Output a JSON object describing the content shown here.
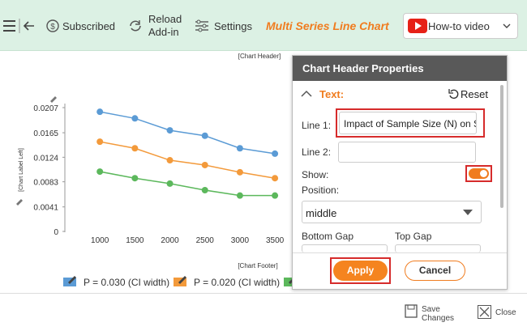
{
  "toolbar": {
    "subscribed": "Subscribed",
    "reload": [
      "Reload",
      "Add-in"
    ],
    "settings": "Settings",
    "title": "Multi Series Line Chart",
    "video": "How-to video"
  },
  "chart_data": {
    "type": "line",
    "header": "[Chart Header]",
    "y_label": "[Chart Label Left]",
    "footer": "[Chart Footer]",
    "x": [
      1000,
      1500,
      2000,
      2500,
      3000,
      3500
    ],
    "series": [
      {
        "name": "P = 0.030 (CI width)",
        "color": "#5b9bd5",
        "values": [
          0.02,
          0.0189,
          0.0169,
          0.016,
          0.0139,
          0.013
        ]
      },
      {
        "name": "P = 0.020 (CI width)",
        "color": "#f39a3b",
        "values": [
          0.015,
          0.0139,
          0.0119,
          0.0111,
          0.0099,
          0.0089
        ]
      },
      {
        "color": "#5cb85c",
        "values": [
          0.01,
          0.0089,
          0.008,
          0.0069,
          0.006,
          0.006
        ]
      }
    ],
    "xlim": [
      500,
      6000
    ],
    "xticks": [
      1000,
      1500,
      2000,
      2500,
      3000,
      3500
    ],
    "ylim": [
      0,
      0.0207
    ],
    "yticks": [
      0,
      0.0041,
      0.0083,
      0.0124,
      0.0165,
      0.0207
    ]
  },
  "panel": {
    "title": "Chart Header Properties",
    "section": "Text:",
    "reset": "Reset",
    "line1_label": "Line 1:",
    "line1_value": "Impact of Sample Size (N) on S",
    "line2_label": "Line 2:",
    "show_label": "Show:",
    "position_label": "Position:",
    "position_value": "middle",
    "bottom_gap": "Bottom Gap",
    "top_gap": "Top Gap",
    "apply": "Apply",
    "cancel": "Cancel"
  },
  "footer": {
    "save": [
      "Save",
      "Changes"
    ],
    "close": "Close"
  }
}
